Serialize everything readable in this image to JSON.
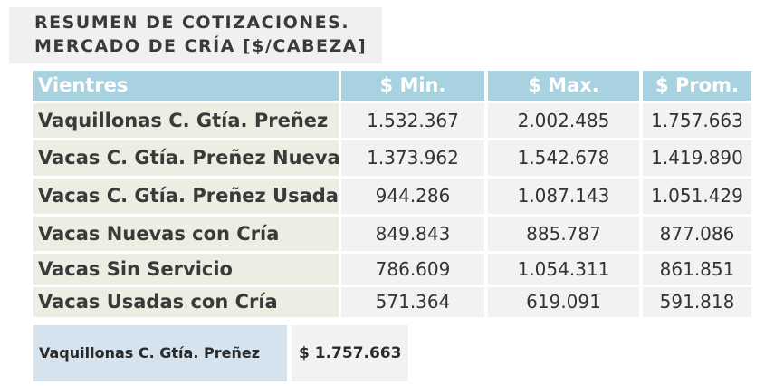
{
  "title": {
    "line1": "RESUMEN DE COTIZACIONES.",
    "line2": "MERCADO DE CRÍA [$/CABEZA]"
  },
  "table": {
    "headers": [
      "Vientres",
      "$ Min.",
      "$ Max.",
      "$ Prom."
    ],
    "rows": [
      {
        "label": "Vaquillonas C. Gtía. Preñez",
        "min": "1.532.367",
        "max": "2.002.485",
        "prom": "1.757.663"
      },
      {
        "label": "Vacas C. Gtía. Preñez Nueva",
        "min": "1.373.962",
        "max": "1.542.678",
        "prom": "1.419.890"
      },
      {
        "label": "Vacas C. Gtía. Preñez Usada",
        "min": "944.286",
        "max": "1.087.143",
        "prom": "1.051.429"
      },
      {
        "label": "Vacas Nuevas con Cría",
        "min": "849.843",
        "max": "885.787",
        "prom": "877.086"
      },
      {
        "label": "Vacas Sin Servicio",
        "min": "786.609",
        "max": "1.054.311",
        "prom": "861.851"
      },
      {
        "label": "Vacas Usadas con Cría",
        "min": "571.364",
        "max": "619.091",
        "prom": "591.818"
      }
    ]
  },
  "highlight": {
    "label": "Vaquillonas C. Gtía. Preñez",
    "value": "$ 1.757.663"
  }
}
